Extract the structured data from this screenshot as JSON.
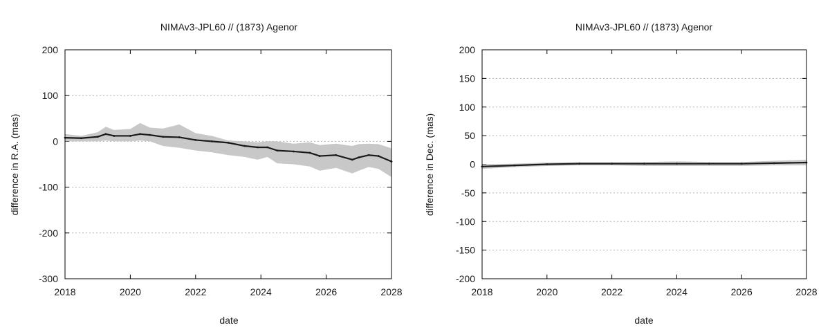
{
  "chart_data": [
    {
      "type": "line",
      "title": "NIMAv3-JPL60 // (1873) Agenor",
      "xlabel": "date",
      "ylabel": "difference in R.A. (mas)",
      "xlim": [
        2018,
        2028
      ],
      "ylim": [
        -300,
        200
      ],
      "xticks": [
        "2018",
        "2020",
        "2022",
        "2024",
        "2026",
        "2028"
      ],
      "yticks": [
        "-300",
        "-200",
        "-100",
        "0",
        "100",
        "200"
      ],
      "grid": "horizontal dotted",
      "band_color": "#c8c8c8",
      "line_color": "#1a1a1a",
      "series": [
        {
          "x": [
            2018,
            2018.5,
            2019,
            2019.25,
            2019.5,
            2020,
            2020.3,
            2020.6,
            2021,
            2021.5,
            2022,
            2022.5,
            2023,
            2023.5,
            2023.9,
            2024.2,
            2024.5,
            2025,
            2025.5,
            2025.8,
            2026.3,
            2026.8,
            2027,
            2027.3,
            2027.6,
            2028
          ],
          "y": [
            8,
            7,
            10,
            16,
            12,
            12,
            16,
            14,
            10,
            9,
            3,
            0,
            -3,
            -10,
            -13,
            -13,
            -20,
            -22,
            -25,
            -32,
            -30,
            -40,
            -35,
            -30,
            -32,
            -44
          ],
          "upper": [
            16,
            12,
            20,
            32,
            25,
            27,
            40,
            30,
            28,
            37,
            18,
            12,
            2,
            0,
            -2,
            0,
            0,
            -5,
            -2,
            -8,
            -5,
            -10,
            -6,
            -5,
            -6,
            -15
          ],
          "lower": [
            0,
            0,
            0,
            2,
            0,
            0,
            2,
            0,
            -10,
            -14,
            -20,
            -24,
            -30,
            -34,
            -40,
            -34,
            -48,
            -50,
            -55,
            -64,
            -58,
            -70,
            -64,
            -56,
            -60,
            -78
          ]
        }
      ]
    },
    {
      "type": "line",
      "title": "NIMAv3-JPL60 // (1873) Agenor",
      "xlabel": "date",
      "ylabel": "difference in Dec. (mas)",
      "xlim": [
        2018,
        2028
      ],
      "ylim": [
        -200,
        200
      ],
      "xticks": [
        "2018",
        "2020",
        "2022",
        "2024",
        "2026",
        "2028"
      ],
      "yticks": [
        "-200",
        "-150",
        "-100",
        "-50",
        "0",
        "50",
        "100",
        "150",
        "200"
      ],
      "grid": "horizontal dotted",
      "band_color": "#c8c8c8",
      "line_color": "#1a1a1a",
      "series": [
        {
          "x": [
            2018,
            2019,
            2020,
            2021,
            2022,
            2023,
            2024,
            2025,
            2026,
            2027,
            2028
          ],
          "y": [
            -4,
            -2,
            0,
            1,
            1,
            1,
            1,
            1,
            1,
            2,
            3
          ],
          "upper": [
            0,
            1,
            3,
            4,
            4,
            4,
            5,
            4,
            4,
            6,
            8
          ],
          "lower": [
            -8,
            -5,
            -3,
            -2,
            -2,
            -3,
            -3,
            -3,
            -3,
            -2,
            -2
          ]
        }
      ]
    }
  ]
}
